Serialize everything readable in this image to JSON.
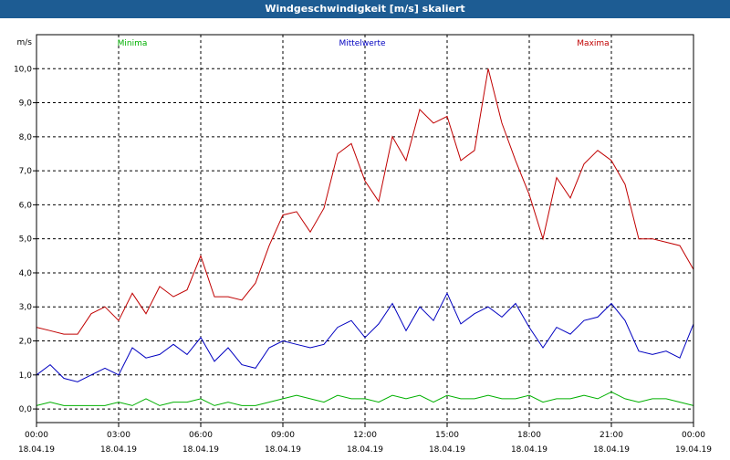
{
  "window": {
    "title": "Windgeschwindigkeit [m/s] skaliert"
  },
  "colors": {
    "minima": "#00b000",
    "mittelwerte": "#0000c0",
    "maxima": "#c00000",
    "titlebar": "#1d5c93"
  },
  "chart_data": {
    "type": "line",
    "title": "Windgeschwindigkeit [m/s] skaliert",
    "ylabel": "m/s",
    "ylim": [
      -0.4,
      11.0
    ],
    "yticks": [
      "0,0",
      "1,0",
      "2,0",
      "3,0",
      "4,0",
      "5,0",
      "6,0",
      "7,0",
      "8,0",
      "9,0",
      "10,0"
    ],
    "xlim": [
      0,
      24
    ],
    "xticks": [
      {
        "time": "00:00",
        "date": "18.04.19"
      },
      {
        "time": "03:00",
        "date": "18.04.19"
      },
      {
        "time": "06:00",
        "date": "18.04.19"
      },
      {
        "time": "09:00",
        "date": "18.04.19"
      },
      {
        "time": "12:00",
        "date": "18.04.19"
      },
      {
        "time": "15:00",
        "date": "18.04.19"
      },
      {
        "time": "18:00",
        "date": "18.04.19"
      },
      {
        "time": "21:00",
        "date": "18.04.19"
      },
      {
        "time": "00:00",
        "date": "19.04.19"
      }
    ],
    "grid": true,
    "legend_placement": "top",
    "series": [
      {
        "name": "Minima",
        "x": [
          0,
          0.5,
          1,
          1.5,
          2,
          2.5,
          3,
          3.5,
          4,
          4.5,
          5,
          5.5,
          6,
          6.5,
          7,
          7.5,
          8,
          8.5,
          9,
          9.5,
          10,
          10.5,
          11,
          11.5,
          12,
          12.5,
          13,
          13.5,
          14,
          14.5,
          15,
          15.5,
          16,
          16.5,
          17,
          17.5,
          18,
          18.5,
          19,
          19.5,
          20,
          20.5,
          21,
          21.5,
          22,
          22.5,
          23,
          23.5,
          24
        ],
        "values": [
          0.1,
          0.2,
          0.1,
          0.1,
          0.1,
          0.1,
          0.2,
          0.1,
          0.3,
          0.1,
          0.2,
          0.2,
          0.3,
          0.1,
          0.2,
          0.1,
          0.1,
          0.2,
          0.3,
          0.4,
          0.3,
          0.2,
          0.4,
          0.3,
          0.3,
          0.2,
          0.4,
          0.3,
          0.4,
          0.2,
          0.4,
          0.3,
          0.3,
          0.4,
          0.3,
          0.3,
          0.4,
          0.2,
          0.3,
          0.3,
          0.4,
          0.3,
          0.5,
          0.3,
          0.2,
          0.3,
          0.3,
          0.2,
          0.1
        ]
      },
      {
        "name": "Mittelwerte",
        "x": [
          0,
          0.5,
          1,
          1.5,
          2,
          2.5,
          3,
          3.5,
          4,
          4.5,
          5,
          5.5,
          6,
          6.5,
          7,
          7.5,
          8,
          8.5,
          9,
          9.5,
          10,
          10.5,
          11,
          11.5,
          12,
          12.5,
          13,
          13.5,
          14,
          14.5,
          15,
          15.5,
          16,
          16.5,
          17,
          17.5,
          18,
          18.5,
          19,
          19.5,
          20,
          20.5,
          21,
          21.5,
          22,
          22.5,
          23,
          23.5,
          24
        ],
        "values": [
          1.0,
          1.3,
          0.9,
          0.8,
          1.0,
          1.2,
          1.0,
          1.8,
          1.5,
          1.6,
          1.9,
          1.6,
          2.1,
          1.4,
          1.8,
          1.3,
          1.2,
          1.8,
          2.0,
          1.9,
          1.8,
          1.9,
          2.4,
          2.6,
          2.1,
          2.5,
          3.1,
          2.3,
          3.0,
          2.6,
          3.4,
          2.5,
          2.8,
          3.0,
          2.7,
          3.1,
          2.4,
          1.8,
          2.4,
          2.2,
          2.6,
          2.7,
          3.1,
          2.6,
          1.7,
          1.6,
          1.7,
          1.5,
          2.5
        ]
      },
      {
        "name": "Maxima",
        "x": [
          0,
          0.5,
          1,
          1.5,
          2,
          2.5,
          3,
          3.5,
          4,
          4.5,
          5,
          5.5,
          6,
          6.5,
          7,
          7.5,
          8,
          8.5,
          9,
          9.5,
          10,
          10.5,
          11,
          11.5,
          12,
          12.5,
          13,
          13.5,
          14,
          14.5,
          15,
          15.5,
          16,
          16.5,
          17,
          17.5,
          18,
          18.5,
          19,
          19.5,
          20,
          20.5,
          21,
          21.5,
          22,
          22.5,
          23,
          23.5,
          24
        ],
        "values": [
          2.4,
          2.3,
          2.2,
          2.2,
          2.8,
          3.0,
          2.6,
          3.4,
          2.8,
          3.6,
          3.3,
          3.5,
          4.5,
          3.3,
          3.3,
          3.2,
          3.7,
          4.8,
          5.7,
          5.8,
          5.2,
          5.9,
          7.5,
          7.8,
          6.7,
          6.1,
          8.0,
          7.3,
          8.8,
          8.4,
          8.6,
          7.3,
          7.6,
          10.0,
          8.4,
          7.3,
          6.3,
          5.0,
          6.8,
          6.2,
          7.2,
          7.6,
          7.3,
          6.6,
          5.0,
          5.0,
          4.9,
          4.8,
          4.1
        ]
      }
    ]
  }
}
